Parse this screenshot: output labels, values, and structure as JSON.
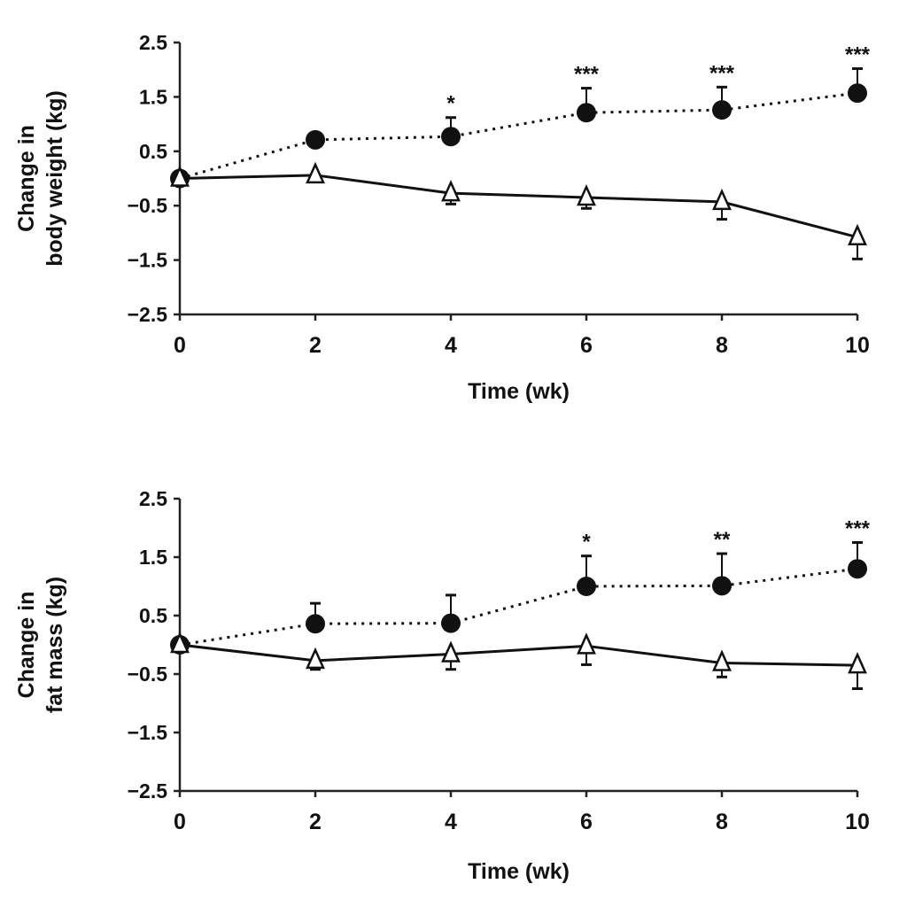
{
  "chart_data": [
    {
      "type": "line",
      "title": "",
      "xlabel": "Time (wk)",
      "ylabel": [
        "Change in",
        "body weight (kg)"
      ],
      "xlim": [
        0,
        10
      ],
      "ylim": [
        -2.5,
        2.5
      ],
      "xticks": [
        0,
        2,
        4,
        6,
        8,
        10
      ],
      "yticks": [
        2.5,
        1.5,
        0.5,
        -0.5,
        -1.5,
        -2.5
      ],
      "ytick_labels": [
        "2.5",
        "1.5",
        "0.5",
        "−0.5",
        "−1.5",
        "−2.5"
      ],
      "grid": false,
      "x": [
        0,
        2,
        4,
        6,
        8,
        10
      ],
      "series": [
        {
          "name": "filled-circle",
          "marker": "circle-filled",
          "line": "dotted",
          "values": [
            0,
            0.71,
            0.77,
            1.21,
            1.26,
            1.57
          ],
          "error_up": [
            0,
            0.08,
            0.35,
            0.45,
            0.42,
            0.45
          ]
        },
        {
          "name": "open-triangle",
          "marker": "triangle-open",
          "line": "solid",
          "values": [
            0,
            0.06,
            -0.27,
            -0.35,
            -0.43,
            -1.08
          ],
          "error_down": [
            0,
            0.05,
            0.2,
            0.2,
            0.32,
            0.4
          ]
        }
      ],
      "annotations": [
        {
          "x": 4,
          "text": "*"
        },
        {
          "x": 6,
          "text": "***"
        },
        {
          "x": 8,
          "text": "***"
        },
        {
          "x": 10,
          "text": "***"
        }
      ]
    },
    {
      "type": "line",
      "title": "",
      "xlabel": "Time (wk)",
      "ylabel": [
        "Change in",
        "fat mass (kg)"
      ],
      "xlim": [
        0,
        10
      ],
      "ylim": [
        -2.5,
        2.5
      ],
      "xticks": [
        0,
        2,
        4,
        6,
        8,
        10
      ],
      "yticks": [
        2.5,
        1.5,
        0.5,
        -0.5,
        -1.5,
        -2.5
      ],
      "ytick_labels": [
        "2.5",
        "1.5",
        "0.5",
        "−0.5",
        "−1.5",
        "−2.5"
      ],
      "grid": false,
      "x": [
        0,
        2,
        4,
        6,
        8,
        10
      ],
      "series": [
        {
          "name": "filled-circle",
          "marker": "circle-filled",
          "line": "dotted",
          "values": [
            0,
            0.36,
            0.37,
            1.0,
            1.01,
            1.3
          ],
          "error_up": [
            0,
            0.35,
            0.48,
            0.52,
            0.55,
            0.45
          ]
        },
        {
          "name": "open-triangle",
          "marker": "triangle-open",
          "line": "solid",
          "values": [
            0,
            -0.27,
            -0.16,
            -0.02,
            -0.31,
            -0.35
          ],
          "error_down": [
            0,
            0.15,
            0.26,
            0.32,
            0.24,
            0.4
          ]
        }
      ],
      "annotations": [
        {
          "x": 6,
          "text": "*"
        },
        {
          "x": 8,
          "text": "**"
        },
        {
          "x": 10,
          "text": "***"
        }
      ]
    }
  ]
}
